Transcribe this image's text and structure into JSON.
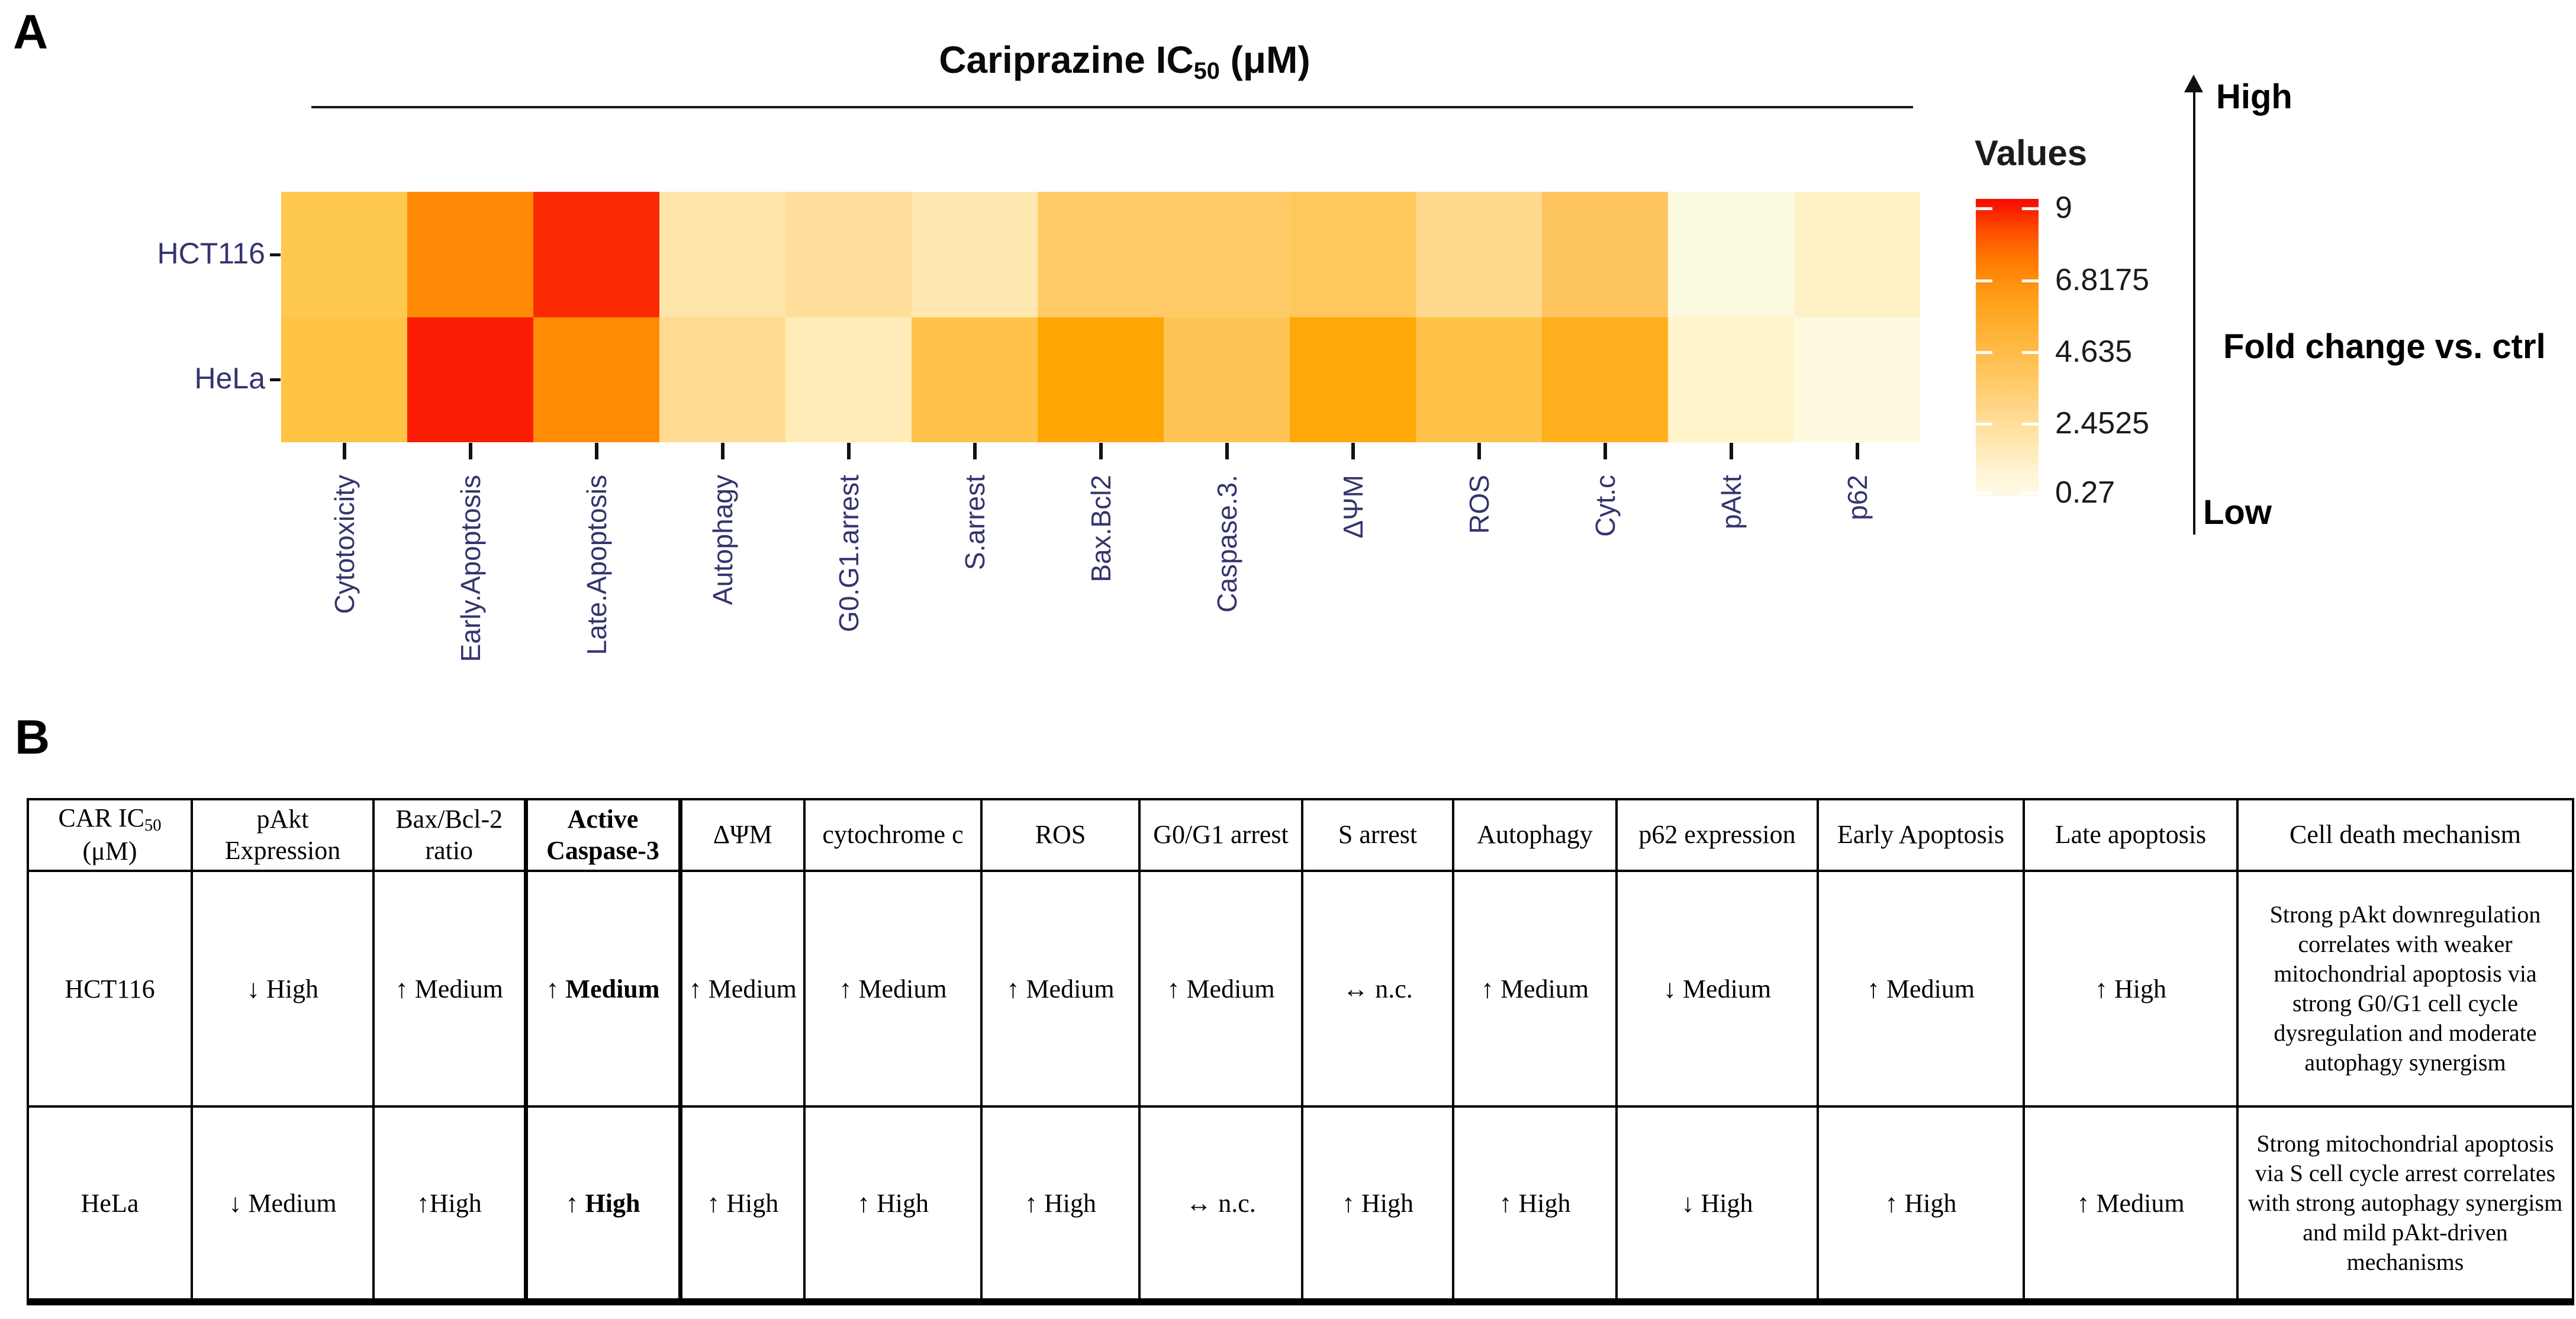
{
  "panel_a": {
    "label": "A",
    "title": {
      "prefix": "Cariprazine IC",
      "sub": "50",
      "suffix": " (μM)",
      "full": "Cariprazine IC50 (μM)"
    },
    "legend": {
      "title": "Values",
      "tick_labels": [
        "9",
        "6.8175",
        "4.635",
        "2.4525",
        "0.27"
      ],
      "high_label": "High",
      "low_label": "Low",
      "axis_label": "Fold change vs. ctrl"
    }
  },
  "chart_data": {
    "type": "heatmap",
    "title": "Cariprazine IC50 (μM)",
    "rows": [
      "HCT116",
      "HeLa"
    ],
    "columns": [
      "Cytotoxicity",
      "Early.Apoptosis",
      "Late.Apoptosis",
      "Autophagy",
      "G0.G1.arrest",
      "S.arrest",
      "Bax.Bcl2",
      "Caspase.3.",
      "ΔΨM",
      "ROS",
      "Cyt.c",
      "pAkt",
      "p62"
    ],
    "colorscale": {
      "min": 0.27,
      "max": 9,
      "ticks": [
        9,
        6.8175,
        4.635,
        2.4525,
        0.27
      ],
      "low_color": "#fdfae6",
      "high_color": "#f90800",
      "label": "Values"
    },
    "legend_note": "Fold change vs. ctrl (Low → High)",
    "values_estimated": [
      [
        3.9,
        6.6,
        8.8,
        2.2,
        2.5,
        2.0,
        3.5,
        3.5,
        3.6,
        2.8,
        3.4,
        0.3,
        1.4
      ],
      [
        4.0,
        8.9,
        6.6,
        2.7,
        1.6,
        4.3,
        6.2,
        4.2,
        6.2,
        4.4,
        5.3,
        1.2,
        0.4
      ]
    ],
    "cell_colors": [
      [
        "#ffc84e",
        "#ff8a06",
        "#fa2b03",
        "#ffe4a9",
        "#ffde9b",
        "#ffe8b1",
        "#ffcb66",
        "#ffcb66",
        "#ffc85c",
        "#ffd98e",
        "#ffc55f",
        "#fbf9df",
        "#fff1c5"
      ],
      [
        "#ffc443",
        "#fb1d03",
        "#ff8c04",
        "#ffda92",
        "#ffecb8",
        "#ffc24c",
        "#ffa605",
        "#ffc456",
        "#ffa808",
        "#ffc349",
        "#ffb01e",
        "#fff4ca",
        "#fdfae0"
      ]
    ]
  },
  "panel_b": {
    "label": "B",
    "table": {
      "header_first": {
        "prefix": "CAR IC",
        "sub": "50",
        "suffix": " (μM)",
        "full": "CAR IC50 (μM)"
      },
      "headers": [
        "CAR IC50 (μM)",
        "pAkt Expression",
        "Bax/Bcl-2 ratio",
        "Active Caspase-3",
        "ΔΨM",
        "cytochrome c",
        "ROS",
        "G0/G1 arrest",
        "S arrest",
        "Autophagy",
        "p62 expression",
        "Early Apoptosis",
        "Late apoptosis",
        "Cell death mechanism"
      ],
      "rows": [
        {
          "cells": [
            "HCT116",
            "↓ High",
            "↑ Medium",
            "↑ Medium",
            "↑ Medium",
            "↑ Medium",
            "↑ Medium",
            "↑ Medium",
            "↔ n.c.",
            "↑ Medium",
            "↓ Medium",
            "↑ Medium",
            "↑ High",
            "Strong pAkt downregulation correlates with weaker mitochondrial apoptosis via strong G0/G1 cell cycle dysregulation and moderate autophagy synergism"
          ]
        },
        {
          "cells": [
            "HeLa",
            "↓ Medium",
            "↑High",
            "↑ High",
            "↑ High",
            "↑ High",
            "↑ High",
            "↔ n.c.",
            "↑ High",
            "↑ High",
            "↓ High",
            "↑ High",
            "↑ Medium",
            "Strong mitochondrial apoptosis via S cell cycle arrest correlates with strong autophagy synergism and mild pAkt-driven mechanisms"
          ]
        }
      ]
    }
  }
}
